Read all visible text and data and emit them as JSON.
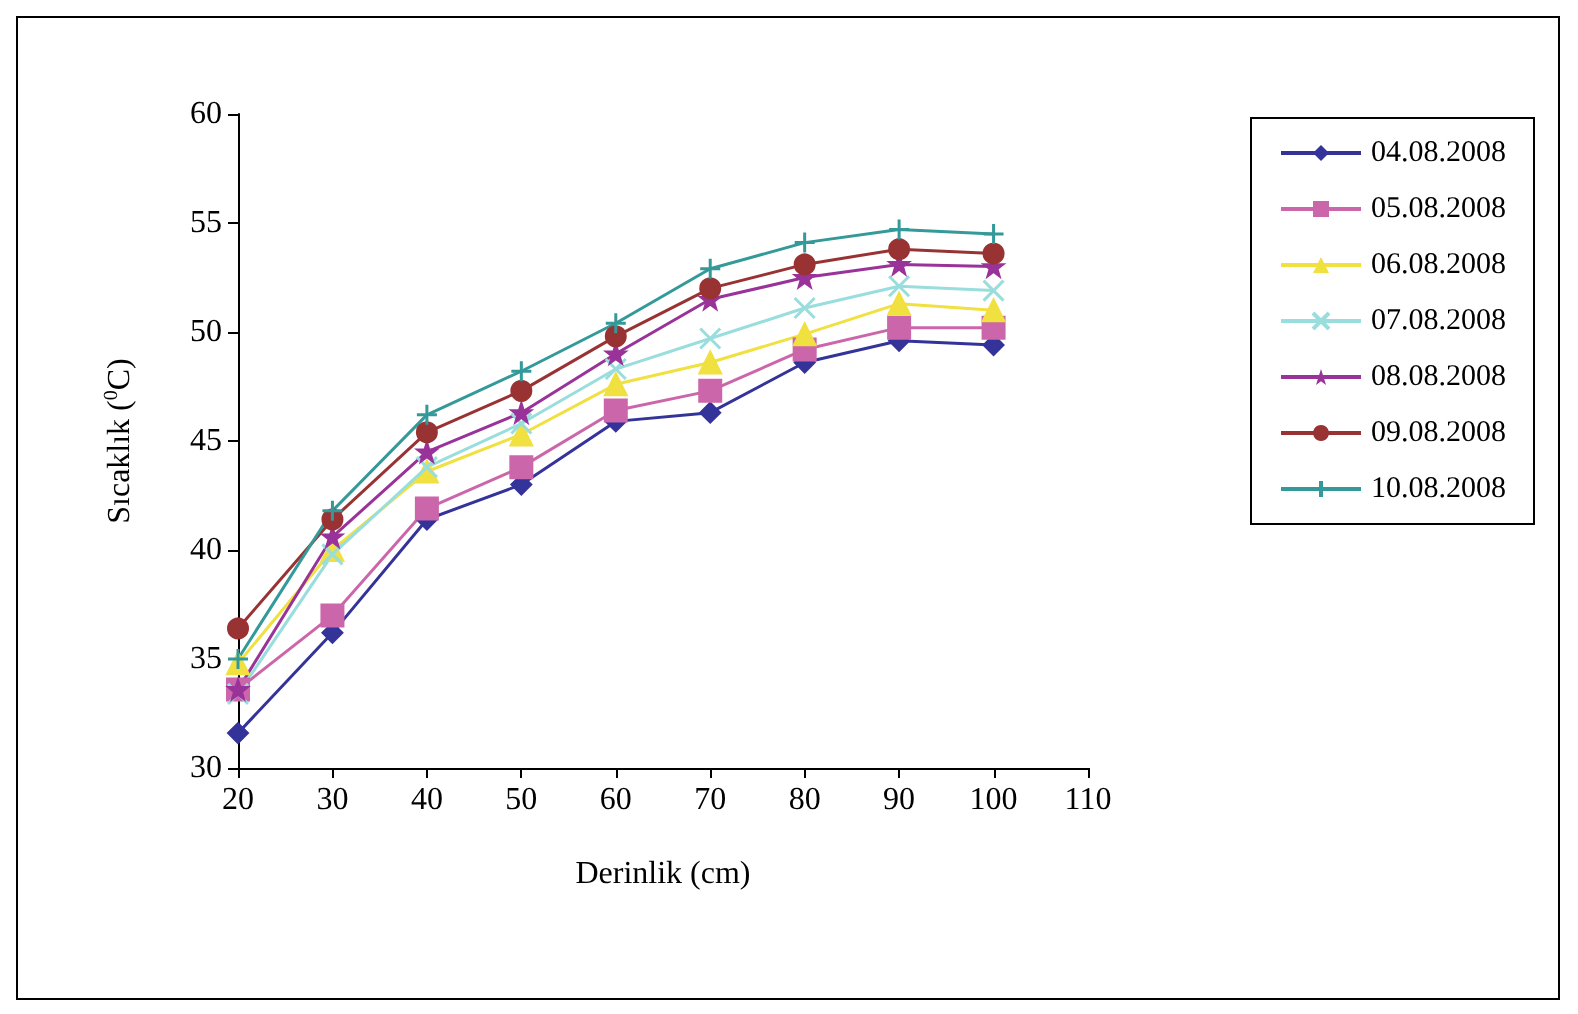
{
  "chart_data": {
    "type": "line",
    "xlabel": "Derinlik (cm)",
    "ylabel": "Sıcaklık ($^{0}$C)",
    "x": [
      20,
      30,
      40,
      50,
      60,
      70,
      80,
      90,
      100
    ],
    "xlim": [
      20,
      110
    ],
    "xticks": [
      20,
      30,
      40,
      50,
      60,
      70,
      80,
      90,
      100,
      110
    ],
    "ylim": [
      30,
      60
    ],
    "yticks": [
      30,
      35,
      40,
      45,
      50,
      55,
      60
    ],
    "grid": false,
    "legend": "right",
    "line_style": "solid",
    "series": [
      {
        "name": "04.08.2008",
        "color": "#333399",
        "marker": "diamond",
        "values": [
          31.6,
          36.2,
          41.4,
          43.0,
          45.9,
          46.3,
          48.6,
          49.6,
          49.4
        ]
      },
      {
        "name": "05.08.2008",
        "color": "#cc66aa",
        "marker": "square",
        "values": [
          33.6,
          37.0,
          41.9,
          43.8,
          46.4,
          47.3,
          49.2,
          50.2,
          50.2
        ]
      },
      {
        "name": "06.08.2008",
        "color": "#f0e040",
        "marker": "triangle",
        "values": [
          34.8,
          40.0,
          43.6,
          45.3,
          47.6,
          48.6,
          49.9,
          51.3,
          51.0
        ]
      },
      {
        "name": "07.08.2008",
        "color": "#99dddd",
        "marker": "cross",
        "values": [
          33.4,
          39.8,
          43.8,
          45.8,
          48.3,
          49.7,
          51.1,
          52.1,
          51.9
        ]
      },
      {
        "name": "08.08.2008",
        "color": "#993399",
        "marker": "star",
        "values": [
          33.6,
          40.6,
          44.5,
          46.3,
          49.0,
          51.5,
          52.5,
          53.1,
          53.0
        ]
      },
      {
        "name": "09.08.2008",
        "color": "#993333",
        "marker": "circle",
        "values": [
          36.4,
          41.4,
          45.4,
          47.3,
          49.8,
          52.0,
          53.1,
          53.8,
          53.6
        ]
      },
      {
        "name": "10.08.2008",
        "color": "#339999",
        "marker": "plus",
        "values": [
          35.0,
          41.8,
          46.2,
          48.2,
          50.4,
          52.9,
          54.1,
          54.7,
          54.5
        ]
      }
    ]
  }
}
